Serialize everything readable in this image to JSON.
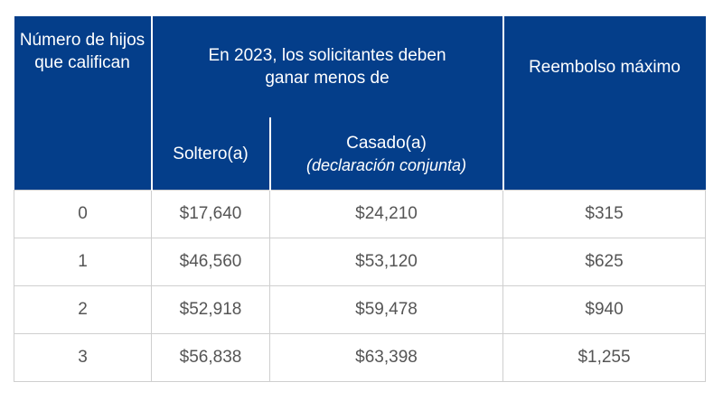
{
  "table": {
    "headers": {
      "children": "Número de hijos que califican",
      "income_group": "En 2023, los solicitantes deben ganar menos de",
      "single": "Soltero(a)",
      "married": "Casado(a)",
      "married_note": "(declaración conjunta)",
      "max_refund": "Reembolso máximo"
    },
    "rows": [
      {
        "children": "0",
        "single": "$17,640",
        "married": "$24,210",
        "max_refund": "$315"
      },
      {
        "children": "1",
        "single": "$46,560",
        "married": "$53,120",
        "max_refund": "$625"
      },
      {
        "children": "2",
        "single": "$52,918",
        "married": "$59,478",
        "max_refund": "$940"
      },
      {
        "children": "3",
        "single": "$56,838",
        "married": "$63,398",
        "max_refund": "$1,255"
      }
    ],
    "colors": {
      "header_background": "#043e8a",
      "header_text": "#ffffff",
      "cell_text": "#555555",
      "cell_border": "#cfcfcf"
    }
  }
}
